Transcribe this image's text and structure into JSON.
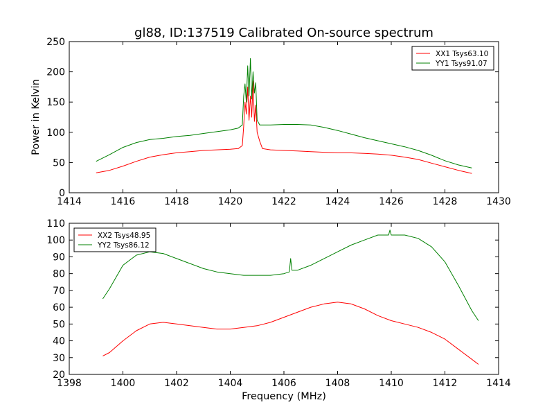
{
  "figure": {
    "title": "gl88, ID:137519 Calibrated On-source spectrum",
    "xlabel": "Frequency (MHz)",
    "ylabel": "Power in Kelvin"
  },
  "colors": {
    "red": "#ff0000",
    "green": "#008000"
  },
  "chart_data": [
    {
      "type": "line",
      "panel": "top",
      "xlim": [
        1414,
        1430
      ],
      "ylim": [
        0,
        250
      ],
      "xticks": [
        "1414",
        "1416",
        "1418",
        "1420",
        "1422",
        "1424",
        "1426",
        "1428",
        "1430"
      ],
      "yticks": [
        "0",
        "50",
        "100",
        "150",
        "200",
        "250"
      ],
      "legend_position": "top-right",
      "series": [
        {
          "name": "XX1 Tsys63.10",
          "color": "#ff0000",
          "points": [
            [
              1415,
              33
            ],
            [
              1415.5,
              37
            ],
            [
              1416,
              44
            ],
            [
              1416.5,
              52
            ],
            [
              1417,
              59
            ],
            [
              1417.5,
              63
            ],
            [
              1418,
              66
            ],
            [
              1418.5,
              68
            ],
            [
              1419,
              70
            ],
            [
              1419.5,
              71
            ],
            [
              1420,
              72
            ],
            [
              1420.3,
              73
            ],
            [
              1420.45,
              78
            ],
            [
              1420.5,
              110
            ],
            [
              1420.55,
              150
            ],
            [
              1420.6,
              130
            ],
            [
              1420.65,
              175
            ],
            [
              1420.7,
              120
            ],
            [
              1420.75,
              160
            ],
            [
              1420.8,
              125
            ],
            [
              1420.85,
              185
            ],
            [
              1420.9,
              118
            ],
            [
              1420.95,
              145
            ],
            [
              1421,
              100
            ],
            [
              1421.1,
              85
            ],
            [
              1421.2,
              73
            ],
            [
              1421.5,
              71
            ],
            [
              1422,
              70
            ],
            [
              1422.5,
              69
            ],
            [
              1423,
              68
            ],
            [
              1423.5,
              67
            ],
            [
              1424,
              66
            ],
            [
              1424.5,
              66
            ],
            [
              1425,
              65
            ],
            [
              1425.5,
              64
            ],
            [
              1426,
              62
            ],
            [
              1426.5,
              59
            ],
            [
              1427,
              55
            ],
            [
              1427.5,
              49
            ],
            [
              1428,
              43
            ],
            [
              1428.5,
              37
            ],
            [
              1429,
              32
            ]
          ]
        },
        {
          "name": "YY1 Tsys91.07",
          "color": "#008000",
          "points": [
            [
              1415,
              52
            ],
            [
              1415.5,
              63
            ],
            [
              1416,
              75
            ],
            [
              1416.5,
              83
            ],
            [
              1417,
              88
            ],
            [
              1417.5,
              90
            ],
            [
              1418,
              93
            ],
            [
              1418.5,
              95
            ],
            [
              1419,
              98
            ],
            [
              1419.5,
              101
            ],
            [
              1420,
              104
            ],
            [
              1420.3,
              107
            ],
            [
              1420.45,
              112
            ],
            [
              1420.5,
              160
            ],
            [
              1420.55,
              180
            ],
            [
              1420.6,
              150
            ],
            [
              1420.65,
              210
            ],
            [
              1420.7,
              160
            ],
            [
              1420.75,
              222
            ],
            [
              1420.8,
              155
            ],
            [
              1420.85,
              200
            ],
            [
              1420.9,
              165
            ],
            [
              1420.95,
              182
            ],
            [
              1421,
              120
            ],
            [
              1421.1,
              112
            ],
            [
              1421.5,
              112
            ],
            [
              1422,
              113
            ],
            [
              1422.5,
              113
            ],
            [
              1423,
              112
            ],
            [
              1423.5,
              108
            ],
            [
              1424,
              103
            ],
            [
              1424.5,
              97
            ],
            [
              1425,
              91
            ],
            [
              1425.5,
              86
            ],
            [
              1426,
              81
            ],
            [
              1426.5,
              76
            ],
            [
              1427,
              70
            ],
            [
              1427.5,
              62
            ],
            [
              1428,
              53
            ],
            [
              1428.5,
              46
            ],
            [
              1429,
              41
            ]
          ]
        }
      ]
    },
    {
      "type": "line",
      "panel": "bottom",
      "xlim": [
        1398,
        1414
      ],
      "ylim": [
        20,
        110
      ],
      "xticks": [
        "1398",
        "1400",
        "1402",
        "1404",
        "1406",
        "1408",
        "1410",
        "1412",
        "1414"
      ],
      "yticks": [
        "20",
        "30",
        "40",
        "50",
        "60",
        "70",
        "80",
        "90",
        "100",
        "110"
      ],
      "legend_position": "top-left",
      "series": [
        {
          "name": "XX2 Tsys48.95",
          "color": "#ff0000",
          "points": [
            [
              1399.25,
              31
            ],
            [
              1399.5,
              33
            ],
            [
              1400,
              40
            ],
            [
              1400.5,
              46
            ],
            [
              1401,
              50
            ],
            [
              1401.5,
              51
            ],
            [
              1402,
              50
            ],
            [
              1402.5,
              49
            ],
            [
              1403,
              48
            ],
            [
              1403.5,
              47
            ],
            [
              1404,
              47
            ],
            [
              1404.5,
              48
            ],
            [
              1405,
              49
            ],
            [
              1405.5,
              51
            ],
            [
              1406,
              54
            ],
            [
              1406.5,
              57
            ],
            [
              1407,
              60
            ],
            [
              1407.5,
              62
            ],
            [
              1408,
              63
            ],
            [
              1408.5,
              62
            ],
            [
              1409,
              59
            ],
            [
              1409.5,
              55
            ],
            [
              1410,
              52
            ],
            [
              1410.5,
              50
            ],
            [
              1411,
              48
            ],
            [
              1411.5,
              45
            ],
            [
              1412,
              41
            ],
            [
              1412.5,
              35
            ],
            [
              1413,
              29
            ],
            [
              1413.25,
              26
            ]
          ]
        },
        {
          "name": "YY2 Tsys86.12",
          "color": "#008000",
          "points": [
            [
              1399.25,
              65
            ],
            [
              1399.5,
              71
            ],
            [
              1400,
              85
            ],
            [
              1400.5,
              91
            ],
            [
              1401,
              93
            ],
            [
              1401.5,
              92
            ],
            [
              1402,
              89
            ],
            [
              1402.5,
              86
            ],
            [
              1403,
              83
            ],
            [
              1403.5,
              81
            ],
            [
              1404,
              80
            ],
            [
              1404.5,
              79
            ],
            [
              1405,
              79
            ],
            [
              1405.5,
              79
            ],
            [
              1406,
              80
            ],
            [
              1406.2,
              81
            ],
            [
              1406.25,
              89
            ],
            [
              1406.3,
              82
            ],
            [
              1406.5,
              82
            ],
            [
              1407,
              85
            ],
            [
              1407.5,
              89
            ],
            [
              1408,
              93
            ],
            [
              1408.5,
              97
            ],
            [
              1409,
              100
            ],
            [
              1409.5,
              103
            ],
            [
              1409.9,
              103
            ],
            [
              1409.95,
              106
            ],
            [
              1410,
              103
            ],
            [
              1410.5,
              103
            ],
            [
              1411,
              101
            ],
            [
              1411.5,
              96
            ],
            [
              1412,
              87
            ],
            [
              1412.5,
              73
            ],
            [
              1413,
              58
            ],
            [
              1413.25,
              52
            ]
          ]
        }
      ]
    }
  ]
}
